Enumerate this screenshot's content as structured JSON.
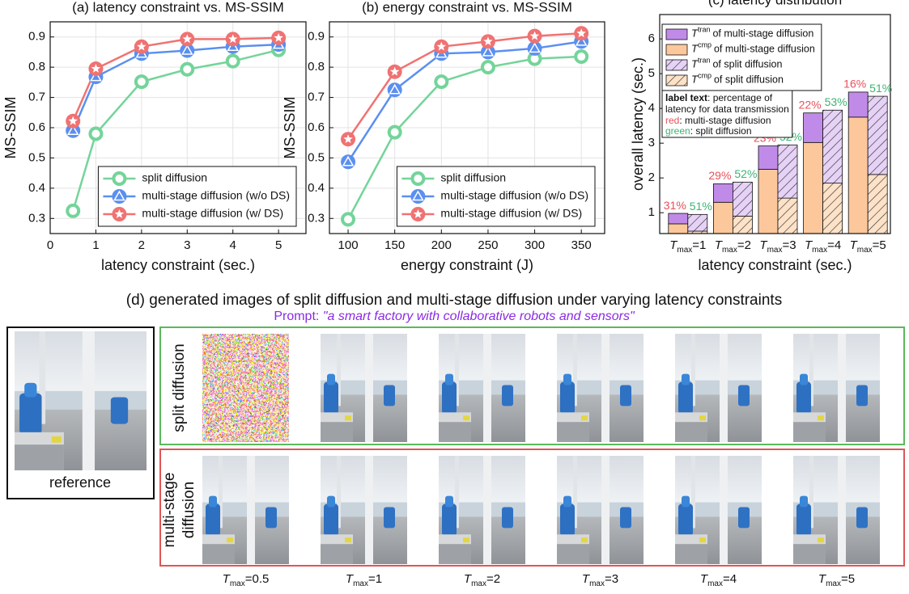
{
  "chart_data": [
    {
      "type": "line",
      "title": "(a) latency constraint vs. MS-SSIM",
      "xlabel": "latency constraint (sec.)",
      "ylabel": "MS-SSIM",
      "x": [
        0.5,
        1,
        2,
        3,
        4,
        5
      ],
      "xlim": [
        0,
        5.6
      ],
      "xticks": [
        0,
        1,
        2,
        3,
        4,
        5
      ],
      "ylim": [
        0.25,
        0.95
      ],
      "yticks": [
        0.3,
        0.4,
        0.5,
        0.6,
        0.7,
        0.8,
        0.9
      ],
      "grid": true,
      "legend": "lower right",
      "series": [
        {
          "name": "split diffusion",
          "color": "#74d49a",
          "marker": "circle",
          "values": [
            0.325,
            0.58,
            0.752,
            0.793,
            0.82,
            0.857
          ]
        },
        {
          "name": "multi-stage diffusion (w/o DS)",
          "color": "#5b8ff0",
          "marker": "triangle",
          "values": [
            0.59,
            0.768,
            0.845,
            0.855,
            0.868,
            0.875
          ]
        },
        {
          "name": "multi-stage diffusion (w/ DS)",
          "color": "#f07272",
          "marker": "star",
          "values": [
            0.622,
            0.795,
            0.868,
            0.893,
            0.893,
            0.897
          ]
        }
      ]
    },
    {
      "type": "line",
      "title": "(b) energy constraint vs. MS-SSIM",
      "xlabel": "energy constraint (J)",
      "ylabel": "MS-SSIM",
      "x": [
        100,
        150,
        200,
        250,
        300,
        350
      ],
      "xlim": [
        80,
        375
      ],
      "xticks": [
        100,
        150,
        200,
        250,
        300,
        350
      ],
      "ylim": [
        0.25,
        0.95
      ],
      "yticks": [
        0.3,
        0.4,
        0.5,
        0.6,
        0.7,
        0.8,
        0.9
      ],
      "grid": true,
      "legend": "lower right",
      "series": [
        {
          "name": "split diffusion",
          "color": "#74d49a",
          "marker": "circle",
          "values": [
            0.297,
            0.585,
            0.752,
            0.8,
            0.828,
            0.835
          ]
        },
        {
          "name": "multi-stage diffusion (w/o DS)",
          "color": "#5b8ff0",
          "marker": "triangle",
          "values": [
            0.487,
            0.725,
            0.845,
            0.85,
            0.862,
            0.885
          ]
        },
        {
          "name": "multi-stage diffusion (w/ DS)",
          "color": "#f07272",
          "marker": "star",
          "values": [
            0.562,
            0.785,
            0.868,
            0.885,
            0.903,
            0.912
          ]
        }
      ]
    },
    {
      "type": "bar",
      "title": "(c) latency distribution",
      "xlabel": "latency constraint (sec.)",
      "ylabel": "overall latency (sec.)",
      "category_symbol": "T",
      "category_subscript": "max",
      "categories": [
        "=1",
        "=2",
        "=3",
        "=4",
        "=5"
      ],
      "ylim": [
        0.4,
        6.7
      ],
      "yticks": [
        1,
        2,
        3,
        4,
        5,
        6
      ],
      "grid": false,
      "legend": "upper left",
      "series": [
        {
          "symbol": "T",
          "superscript": "tran",
          "name": "of multi-stage diffusion",
          "stack": "multi-stage",
          "hatch": false,
          "color": "#c08be8",
          "values": [
            0.3,
            0.53,
            0.67,
            0.85,
            0.72
          ]
        },
        {
          "symbol": "T",
          "superscript": "cmp",
          "name": "of multi-stage diffusion",
          "stack": "multi-stage",
          "hatch": false,
          "color": "#fcc89b",
          "values": [
            0.68,
            1.3,
            2.25,
            3.02,
            3.75
          ]
        },
        {
          "symbol": "T",
          "superscript": "tran",
          "name": "of split diffusion",
          "stack": "split",
          "hatch": true,
          "color": "#e6d2f6",
          "values": [
            0.48,
            0.98,
            1.53,
            2.1,
            2.25
          ]
        },
        {
          "symbol": "T",
          "superscript": "cmp",
          "name": "of split diffusion",
          "stack": "split",
          "hatch": true,
          "color": "#fde2c8",
          "values": [
            0.47,
            0.9,
            1.42,
            1.85,
            2.1
          ]
        }
      ],
      "transmission_share": [
        {
          "stack": "multi-stage",
          "color": "#e8505b",
          "values": [
            31,
            29,
            23,
            22,
            16
          ],
          "value_labels": [
            "31%",
            "29%",
            "23%",
            "22%",
            "16%"
          ]
        },
        {
          "stack": "split",
          "color": "#3cb371",
          "values": [
            51,
            52,
            52,
            53,
            51
          ],
          "value_labels": [
            "51%",
            "52%",
            "52%",
            "53%",
            "51%"
          ]
        }
      ],
      "annotation": {
        "heading": "label text",
        "heading_rest": ": percentage of",
        "line2": "latency for data transmission",
        "items": [
          {
            "label": "red",
            "text": ": multi-stage diffusion"
          },
          {
            "label": "green",
            "text": ": split diffusion"
          }
        ]
      }
    }
  ],
  "figure_d": {
    "title": "(d) generated images of split diffusion and multi-stage diffusion under varying latency constraints",
    "prompt_label": "Prompt: ",
    "prompt": "\"a smart factory with collaborative robots and sensors\"",
    "reference": "reference",
    "rows": [
      {
        "label": [
          "split diffusion"
        ]
      },
      {
        "label": [
          "multi-stage",
          "diffusion"
        ]
      }
    ],
    "column_symbol": "T",
    "column_subscript": "max",
    "columns": [
      "=0.5",
      "=1",
      "=2",
      "=3",
      "=4",
      "=5"
    ]
  }
}
